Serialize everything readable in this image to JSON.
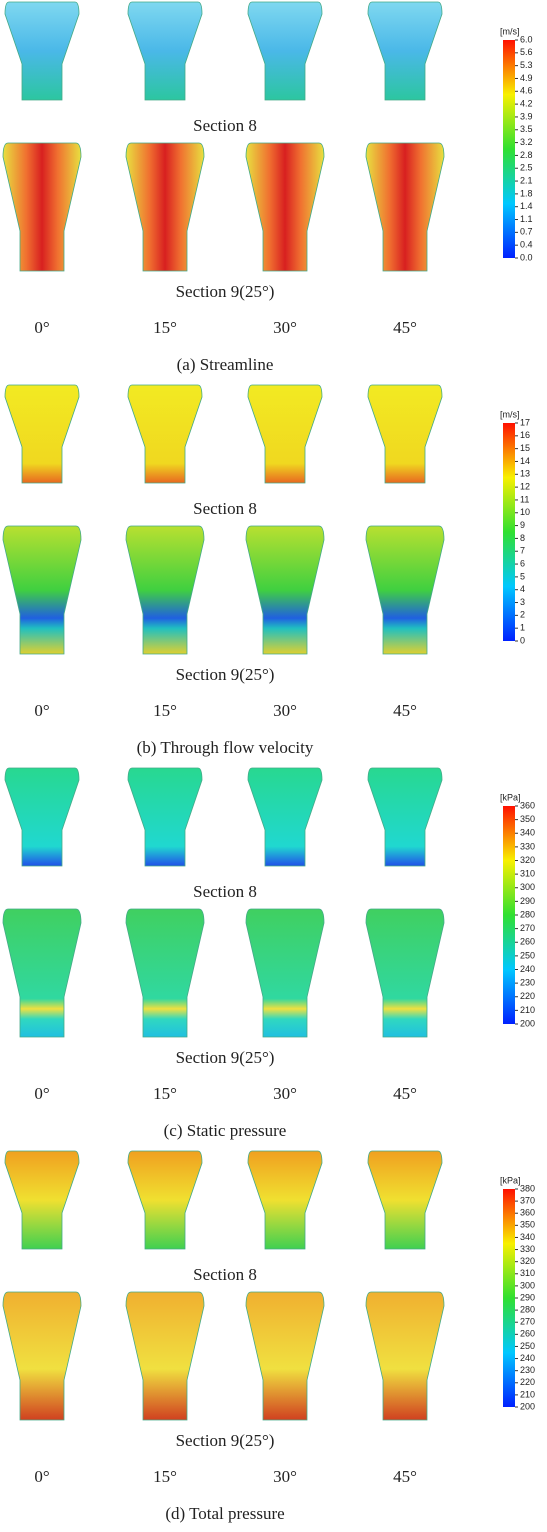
{
  "panels": [
    {
      "caption": "(a) Streamline",
      "rows": [
        {
          "label": "Section 8"
        },
        {
          "label": "Section 9(25°)"
        }
      ],
      "angles": [
        "0°",
        "15°",
        "30°",
        "45°"
      ],
      "colorbar": {
        "unit": "[m/s]",
        "ticks": [
          "6.0",
          "5.6",
          "5.3",
          "4.9",
          "4.6",
          "4.2",
          "3.9",
          "3.5",
          "3.2",
          "2.8",
          "2.5",
          "2.1",
          "1.8",
          "1.4",
          "1.1",
          "0.7",
          "0.4",
          "0.0"
        ]
      }
    },
    {
      "caption": "(b) Through flow velocity",
      "rows": [
        {
          "label": "Section 8"
        },
        {
          "label": "Section 9(25°)"
        }
      ],
      "angles": [
        "0°",
        "15°",
        "30°",
        "45°"
      ],
      "colorbar": {
        "unit": "[m/s]",
        "ticks": [
          "17",
          "16",
          "15",
          "14",
          "13",
          "12",
          "11",
          "10",
          "9",
          "8",
          "7",
          "6",
          "5",
          "4",
          "3",
          "2",
          "1",
          "0"
        ]
      }
    },
    {
      "caption": "(c) Static pressure",
      "rows": [
        {
          "label": "Section 8"
        },
        {
          "label": "Section 9(25°)"
        }
      ],
      "angles": [
        "0°",
        "15°",
        "30°",
        "45°"
      ],
      "colorbar": {
        "unit": "[kPa]",
        "ticks": [
          "360",
          "350",
          "340",
          "330",
          "320",
          "310",
          "300",
          "290",
          "280",
          "270",
          "260",
          "250",
          "240",
          "230",
          "220",
          "210",
          "200"
        ]
      }
    },
    {
      "caption": "(d) Total pressure",
      "rows": [
        {
          "label": "Section 8"
        },
        {
          "label": "Section 9(25°)"
        }
      ],
      "angles": [
        "0°",
        "15°",
        "30°",
        "45°"
      ],
      "colorbar": {
        "unit": "[kPa]",
        "ticks": [
          "380",
          "370",
          "360",
          "350",
          "340",
          "330",
          "320",
          "310",
          "300",
          "290",
          "280",
          "270",
          "260",
          "250",
          "240",
          "230",
          "220",
          "210",
          "200"
        ]
      }
    }
  ]
}
